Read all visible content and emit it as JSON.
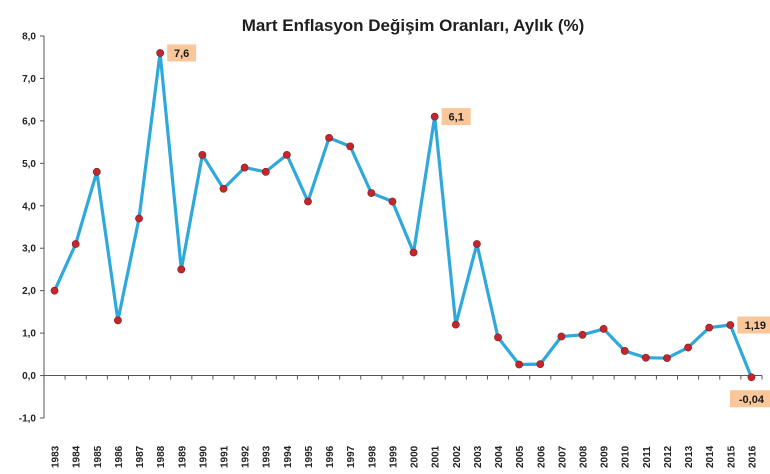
{
  "chart_data": {
    "type": "line",
    "title": "Mart Enflasyon Değişim Oranları, Aylık (%)",
    "xlabel": "",
    "ylabel": "",
    "ylim": [
      -1.0,
      8.0
    ],
    "yticks": [
      -1.0,
      0.0,
      1.0,
      2.0,
      3.0,
      4.0,
      5.0,
      6.0,
      7.0,
      8.0
    ],
    "ytick_labels": [
      "-1,0",
      "0,0",
      "1,0",
      "2,0",
      "3,0",
      "4,0",
      "5,0",
      "6,0",
      "7,0",
      "8,0"
    ],
    "categories": [
      "1983",
      "1984",
      "1985",
      "1986",
      "1987",
      "1988",
      "1989",
      "1990",
      "1991",
      "1992",
      "1993",
      "1994",
      "1995",
      "1996",
      "1997",
      "1998",
      "1999",
      "2000",
      "2001",
      "2002",
      "2003",
      "2004",
      "2005",
      "2006",
      "2007",
      "2008",
      "2009",
      "2010",
      "2011",
      "2012",
      "2013",
      "2014",
      "2015",
      "2016"
    ],
    "series": [
      {
        "values": [
          2.0,
          3.1,
          4.8,
          1.3,
          3.7,
          7.6,
          2.5,
          5.2,
          4.4,
          4.9,
          4.8,
          5.2,
          4.1,
          5.6,
          5.4,
          4.3,
          4.1,
          2.9,
          6.1,
          1.2,
          3.1,
          0.9,
          0.26,
          0.27,
          0.92,
          0.96,
          1.1,
          0.58,
          0.42,
          0.41,
          0.66,
          1.13,
          1.19,
          -0.04
        ]
      }
    ],
    "data_labels": [
      {
        "category": "1988",
        "text": "7,6"
      },
      {
        "category": "2001",
        "text": "6,1"
      },
      {
        "category": "2015",
        "text": "1,19"
      },
      {
        "category": "2016",
        "text": "-0,04"
      }
    ],
    "colors": {
      "line": "#2fa8dc",
      "marker": "#c0282d",
      "label_bg": "#f9c79a",
      "axis": "#555555"
    },
    "grid": false,
    "legend": "none"
  }
}
